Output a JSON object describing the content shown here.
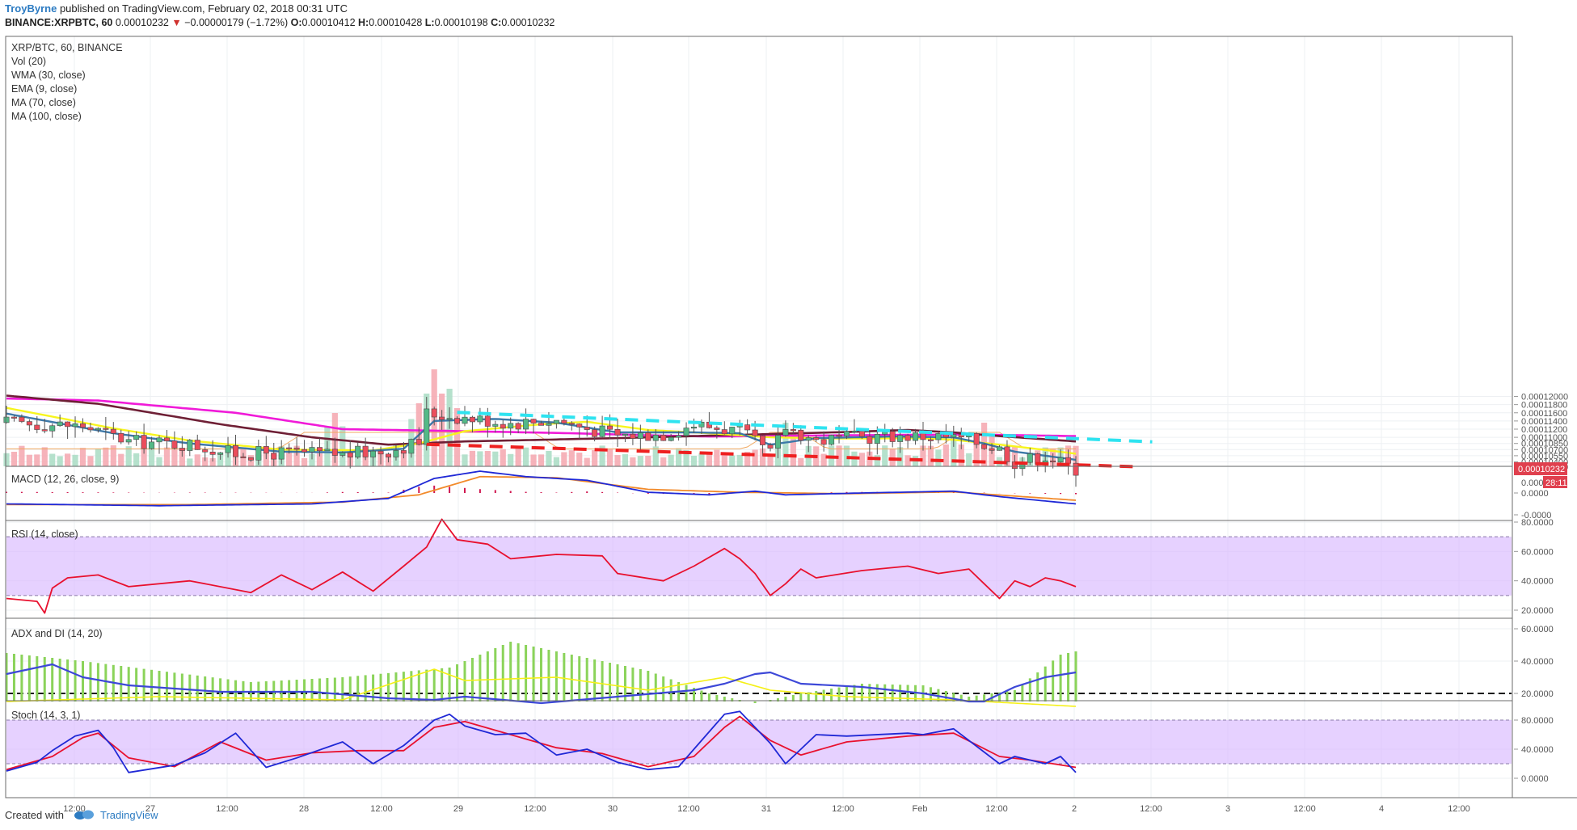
{
  "header": {
    "author": "TroyByrne",
    "published": "published on TradingView.com, February 02, 2018 00:31 UTC",
    "symbol": "BINANCE:XRPBTC, 60",
    "last": "0.00010232",
    "change": "−0.00000179 (−1.72%)",
    "o_label": "O:",
    "o_value": "0.00010412",
    "h_label": "H:",
    "h_value": "0.00010428",
    "l_label": "L:",
    "l_value": "0.00010198",
    "c_label": "C:",
    "c_value": "0.00010232"
  },
  "footer": {
    "created_with": "Created with",
    "brand": "TradingView"
  },
  "colors": {
    "up": "#53b987",
    "down": "#eb4d5c",
    "up_vol": "#a8dcc3",
    "down_vol": "#f5a6ae",
    "wma": "#3c78a8",
    "ema": "#f7f51e",
    "ma70": "#6e1f35",
    "ma100": "#f01ad8",
    "support": "#ee2020",
    "resistance": "#2ee3f0",
    "macd": "#1f28d6",
    "signal": "#f28a2a",
    "rsi": "#e8102e",
    "band": "#d8b8ff",
    "adx": "#3d48d8",
    "di_plus": "#f5f016",
    "di_minus": "#8bd35a",
    "stoch_k": "#1f28d6",
    "stoch_d": "#e8102e"
  },
  "chart_data": {
    "type": "candlestick",
    "title": "XRP/BTC, 60, BINANCE",
    "indicator_labels": [
      "Vol (20)",
      "WMA (30, close)",
      "EMA (9, close)",
      "MA (70, close)",
      "MA (100, close)"
    ],
    "price_axis": {
      "ticks": [
        "0.00012000",
        "0.00011800",
        "0.00011600",
        "0.00011400",
        "0.00011200",
        "0.00011000",
        "0.00010850",
        "0.00010700",
        "0.00010550",
        "0.00010400",
        "0.00010280"
      ],
      "last_price_label": "0.00010232",
      "countdown_label": "28:11",
      "volume_zero_label": "0.000"
    },
    "time_axis": [
      "12:00",
      "27",
      "12:00",
      "28",
      "12:00",
      "29",
      "12:00",
      "30",
      "12:00",
      "31",
      "12:00",
      "Feb",
      "12:00",
      "2",
      "12:00",
      "3",
      "12:00",
      "4",
      "12:00"
    ],
    "price_waypoints": [
      [
        0,
        0.0001136
      ],
      [
        10,
        0.0001128
      ],
      [
        16,
        0.000109
      ],
      [
        24,
        0.0001083
      ],
      [
        30,
        0.000106
      ],
      [
        36,
        0.0001062
      ],
      [
        38,
        0.0001062
      ],
      [
        44,
        0.0001058
      ],
      [
        50,
        0.0001068
      ],
      [
        54,
        0.0001088
      ],
      [
        55,
        0.0001159
      ],
      [
        60,
        0.0001148
      ],
      [
        66,
        0.0001135
      ],
      [
        72,
        0.0001142
      ],
      [
        76,
        0.0001122
      ],
      [
        80,
        0.0001105
      ],
      [
        86,
        0.0001108
      ],
      [
        90,
        0.0001132
      ],
      [
        96,
        0.0001115
      ],
      [
        100,
        0.000106
      ],
      [
        102,
        0.0001125
      ],
      [
        106,
        0.0001092
      ],
      [
        110,
        0.0001098
      ],
      [
        116,
        0.0001104
      ],
      [
        122,
        0.0001102
      ],
      [
        126,
        0.0001094
      ],
      [
        130,
        0.0001072
      ],
      [
        132,
        0.000104
      ],
      [
        136,
        0.0001055
      ],
      [
        138,
        0.0001038
      ],
      [
        140,
        0.0001023
      ]
    ],
    "volume_spikes": [
      [
        43,
        0.55
      ],
      [
        54,
        0.65
      ],
      [
        56,
        1.0
      ],
      [
        58,
        0.8
      ],
      [
        102,
        0.45
      ],
      [
        124,
        0.3
      ],
      [
        128,
        0.45
      ]
    ],
    "overlays": {
      "wma_30": [
        [
          0,
          0.0001158
        ],
        [
          14,
          0.000111
        ],
        [
          24,
          0.0001085
        ],
        [
          36,
          0.0001065
        ],
        [
          44,
          0.0001063
        ],
        [
          52,
          0.0001072
        ],
        [
          56,
          0.000114
        ],
        [
          64,
          0.0001145
        ],
        [
          72,
          0.0001136
        ],
        [
          80,
          0.0001112
        ],
        [
          90,
          0.0001112
        ],
        [
          96,
          0.000111
        ],
        [
          100,
          0.0001082
        ],
        [
          106,
          0.0001098
        ],
        [
          116,
          0.0001102
        ],
        [
          124,
          0.00011
        ],
        [
          128,
          0.0001085
        ],
        [
          132,
          0.0001065
        ],
        [
          140,
          0.0001045
        ]
      ],
      "ema_9": [
        [
          0,
          0.0001172
        ],
        [
          14,
          0.0001122
        ],
        [
          24,
          0.0001092
        ],
        [
          36,
          0.000107
        ],
        [
          48,
          0.0001068
        ],
        [
          54,
          0.0001085
        ],
        [
          60,
          0.0001115
        ],
        [
          70,
          0.0001132
        ],
        [
          76,
          0.0001138
        ],
        [
          84,
          0.0001118
        ],
        [
          92,
          0.000111
        ],
        [
          100,
          0.00011
        ],
        [
          110,
          0.0001097
        ],
        [
          120,
          0.0001098
        ],
        [
          124,
          0.0001094
        ],
        [
          132,
          0.0001078
        ],
        [
          140,
          0.000106
        ]
      ],
      "ma_70": [
        [
          0,
          0.0001202
        ],
        [
          12,
          0.0001182
        ],
        [
          28,
          0.0001132
        ],
        [
          40,
          0.00011
        ],
        [
          50,
          0.0001082
        ],
        [
          60,
          0.000109
        ],
        [
          80,
          0.0001098
        ],
        [
          96,
          0.0001106
        ],
        [
          110,
          0.0001113
        ],
        [
          118,
          0.0001118
        ],
        [
          124,
          0.0001112
        ],
        [
          130,
          0.0001103
        ],
        [
          140,
          0.000109
        ]
      ],
      "ma_100": [
        [
          0,
          0.0001195
        ],
        [
          12,
          0.000119
        ],
        [
          30,
          0.000116
        ],
        [
          44,
          0.000112
        ],
        [
          60,
          0.0001115
        ],
        [
          74,
          0.000111
        ],
        [
          84,
          0.0001105
        ],
        [
          92,
          0.0001102
        ],
        [
          110,
          0.0001105
        ],
        [
          126,
          0.0001107
        ],
        [
          140,
          0.0001103
        ]
      ]
    },
    "trendlines": {
      "resistance": {
        "from": [
          59,
          0.0001161
        ],
        "to": [
          150,
          0.0001089
        ]
      },
      "support": {
        "from": [
          55,
          0.0001083
        ],
        "to": [
          148,
          0.0001028
        ]
      }
    },
    "macd": {
      "label": "MACD (12, 26, close, 9)",
      "ticks": [
        "0.0000",
        "0.0000",
        "-0.0000"
      ],
      "macd_line": [
        [
          0,
          0.1
        ],
        [
          20,
          0.05
        ],
        [
          40,
          0.1
        ],
        [
          50,
          0.25
        ],
        [
          56,
          0.8
        ],
        [
          62,
          1.0
        ],
        [
          68,
          0.85
        ],
        [
          76,
          0.75
        ],
        [
          84,
          0.42
        ],
        [
          92,
          0.35
        ],
        [
          98,
          0.45
        ],
        [
          102,
          0.35
        ],
        [
          112,
          0.4
        ],
        [
          124,
          0.45
        ],
        [
          130,
          0.3
        ],
        [
          140,
          0.1
        ]
      ],
      "signal_line": [
        [
          0,
          0.08
        ],
        [
          24,
          0.08
        ],
        [
          44,
          0.15
        ],
        [
          54,
          0.35
        ],
        [
          62,
          0.85
        ],
        [
          72,
          0.82
        ],
        [
          84,
          0.5
        ],
        [
          96,
          0.42
        ],
        [
          110,
          0.38
        ],
        [
          124,
          0.43
        ],
        [
          140,
          0.2
        ]
      ]
    },
    "rsi": {
      "label": "RSI (14, close)",
      "ticks": [
        "80.0000",
        "60.0000",
        "40.0000",
        "20.0000"
      ],
      "band": [
        30,
        70
      ],
      "values": [
        [
          0,
          28
        ],
        [
          4,
          26
        ],
        [
          5,
          18
        ],
        [
          6,
          35
        ],
        [
          8,
          42
        ],
        [
          12,
          44
        ],
        [
          16,
          36
        ],
        [
          24,
          40
        ],
        [
          32,
          32
        ],
        [
          36,
          44
        ],
        [
          40,
          34
        ],
        [
          44,
          46
        ],
        [
          48,
          33
        ],
        [
          52,
          50
        ],
        [
          55,
          63
        ],
        [
          57,
          82
        ],
        [
          59,
          68
        ],
        [
          63,
          65
        ],
        [
          66,
          55
        ],
        [
          72,
          58
        ],
        [
          78,
          57
        ],
        [
          80,
          45
        ],
        [
          86,
          40
        ],
        [
          90,
          50
        ],
        [
          94,
          62
        ],
        [
          96,
          55
        ],
        [
          98,
          45
        ],
        [
          100,
          30
        ],
        [
          102,
          38
        ],
        [
          104,
          48
        ],
        [
          106,
          42
        ],
        [
          112,
          47
        ],
        [
          118,
          50
        ],
        [
          122,
          45
        ],
        [
          126,
          48
        ],
        [
          128,
          38
        ],
        [
          130,
          28
        ],
        [
          132,
          40
        ],
        [
          134,
          36
        ],
        [
          136,
          42
        ],
        [
          138,
          40
        ],
        [
          140,
          36
        ]
      ]
    },
    "adx_di": {
      "label": "ADX and DI (14, 20)",
      "ticks": [
        "60.0000",
        "40.0000",
        "20.0000"
      ],
      "threshold": 20,
      "adx_line": [
        [
          0,
          32
        ],
        [
          6,
          38
        ],
        [
          10,
          30
        ],
        [
          16,
          25
        ],
        [
          28,
          21
        ],
        [
          40,
          21
        ],
        [
          50,
          17
        ],
        [
          56,
          16
        ],
        [
          60,
          18
        ],
        [
          70,
          14
        ],
        [
          80,
          18
        ],
        [
          90,
          22
        ],
        [
          94,
          26
        ],
        [
          98,
          32
        ],
        [
          100,
          33
        ],
        [
          104,
          26
        ],
        [
          112,
          24
        ],
        [
          120,
          20
        ],
        [
          126,
          15
        ],
        [
          128,
          15
        ],
        [
          132,
          24
        ],
        [
          136,
          30
        ],
        [
          140,
          33
        ]
      ],
      "di_plus": [
        [
          0,
          15
        ],
        [
          20,
          18
        ],
        [
          44,
          16
        ],
        [
          56,
          35
        ],
        [
          60,
          28
        ],
        [
          72,
          30
        ],
        [
          84,
          22
        ],
        [
          94,
          30
        ],
        [
          100,
          22
        ],
        [
          110,
          18
        ],
        [
          124,
          16
        ],
        [
          140,
          12
        ]
      ],
      "di_minus_histogram": [
        [
          0,
          45
        ],
        [
          10,
          40
        ],
        [
          20,
          34
        ],
        [
          32,
          27
        ],
        [
          44,
          30
        ],
        [
          58,
          36
        ],
        [
          66,
          52
        ],
        [
          74,
          44
        ],
        [
          84,
          34
        ],
        [
          92,
          20
        ],
        [
          98,
          14
        ],
        [
          104,
          20
        ],
        [
          112,
          26
        ],
        [
          120,
          25
        ],
        [
          126,
          18
        ],
        [
          132,
          22
        ],
        [
          138,
          44
        ],
        [
          140,
          46
        ]
      ]
    },
    "stoch": {
      "label": "Stoch (14, 3, 1)",
      "ticks": [
        "80.0000",
        "40.0000",
        "0.0000"
      ],
      "band": [
        20,
        80
      ],
      "k_line": [
        [
          0,
          10
        ],
        [
          4,
          22
        ],
        [
          6,
          38
        ],
        [
          9,
          58
        ],
        [
          12,
          66
        ],
        [
          14,
          42
        ],
        [
          16,
          8
        ],
        [
          22,
          18
        ],
        [
          26,
          35
        ],
        [
          30,
          62
        ],
        [
          34,
          15
        ],
        [
          38,
          28
        ],
        [
          44,
          50
        ],
        [
          48,
          20
        ],
        [
          52,
          45
        ],
        [
          56,
          80
        ],
        [
          58,
          88
        ],
        [
          60,
          72
        ],
        [
          64,
          60
        ],
        [
          68,
          62
        ],
        [
          72,
          32
        ],
        [
          76,
          40
        ],
        [
          80,
          22
        ],
        [
          84,
          12
        ],
        [
          88,
          16
        ],
        [
          94,
          88
        ],
        [
          96,
          92
        ],
        [
          100,
          48
        ],
        [
          102,
          20
        ],
        [
          106,
          60
        ],
        [
          110,
          58
        ],
        [
          118,
          62
        ],
        [
          120,
          60
        ],
        [
          124,
          68
        ],
        [
          130,
          20
        ],
        [
          132,
          30
        ],
        [
          136,
          20
        ],
        [
          138,
          30
        ],
        [
          140,
          8
        ]
      ],
      "d_line": [
        [
          0,
          12
        ],
        [
          6,
          30
        ],
        [
          10,
          56
        ],
        [
          12,
          62
        ],
        [
          16,
          28
        ],
        [
          22,
          16
        ],
        [
          28,
          50
        ],
        [
          34,
          25
        ],
        [
          40,
          35
        ],
        [
          46,
          38
        ],
        [
          52,
          38
        ],
        [
          56,
          70
        ],
        [
          60,
          78
        ],
        [
          66,
          60
        ],
        [
          72,
          42
        ],
        [
          78,
          34
        ],
        [
          84,
          16
        ],
        [
          90,
          30
        ],
        [
          94,
          70
        ],
        [
          96,
          85
        ],
        [
          100,
          52
        ],
        [
          104,
          32
        ],
        [
          110,
          50
        ],
        [
          118,
          58
        ],
        [
          124,
          62
        ],
        [
          130,
          30
        ],
        [
          134,
          25
        ],
        [
          140,
          15
        ]
      ]
    }
  }
}
